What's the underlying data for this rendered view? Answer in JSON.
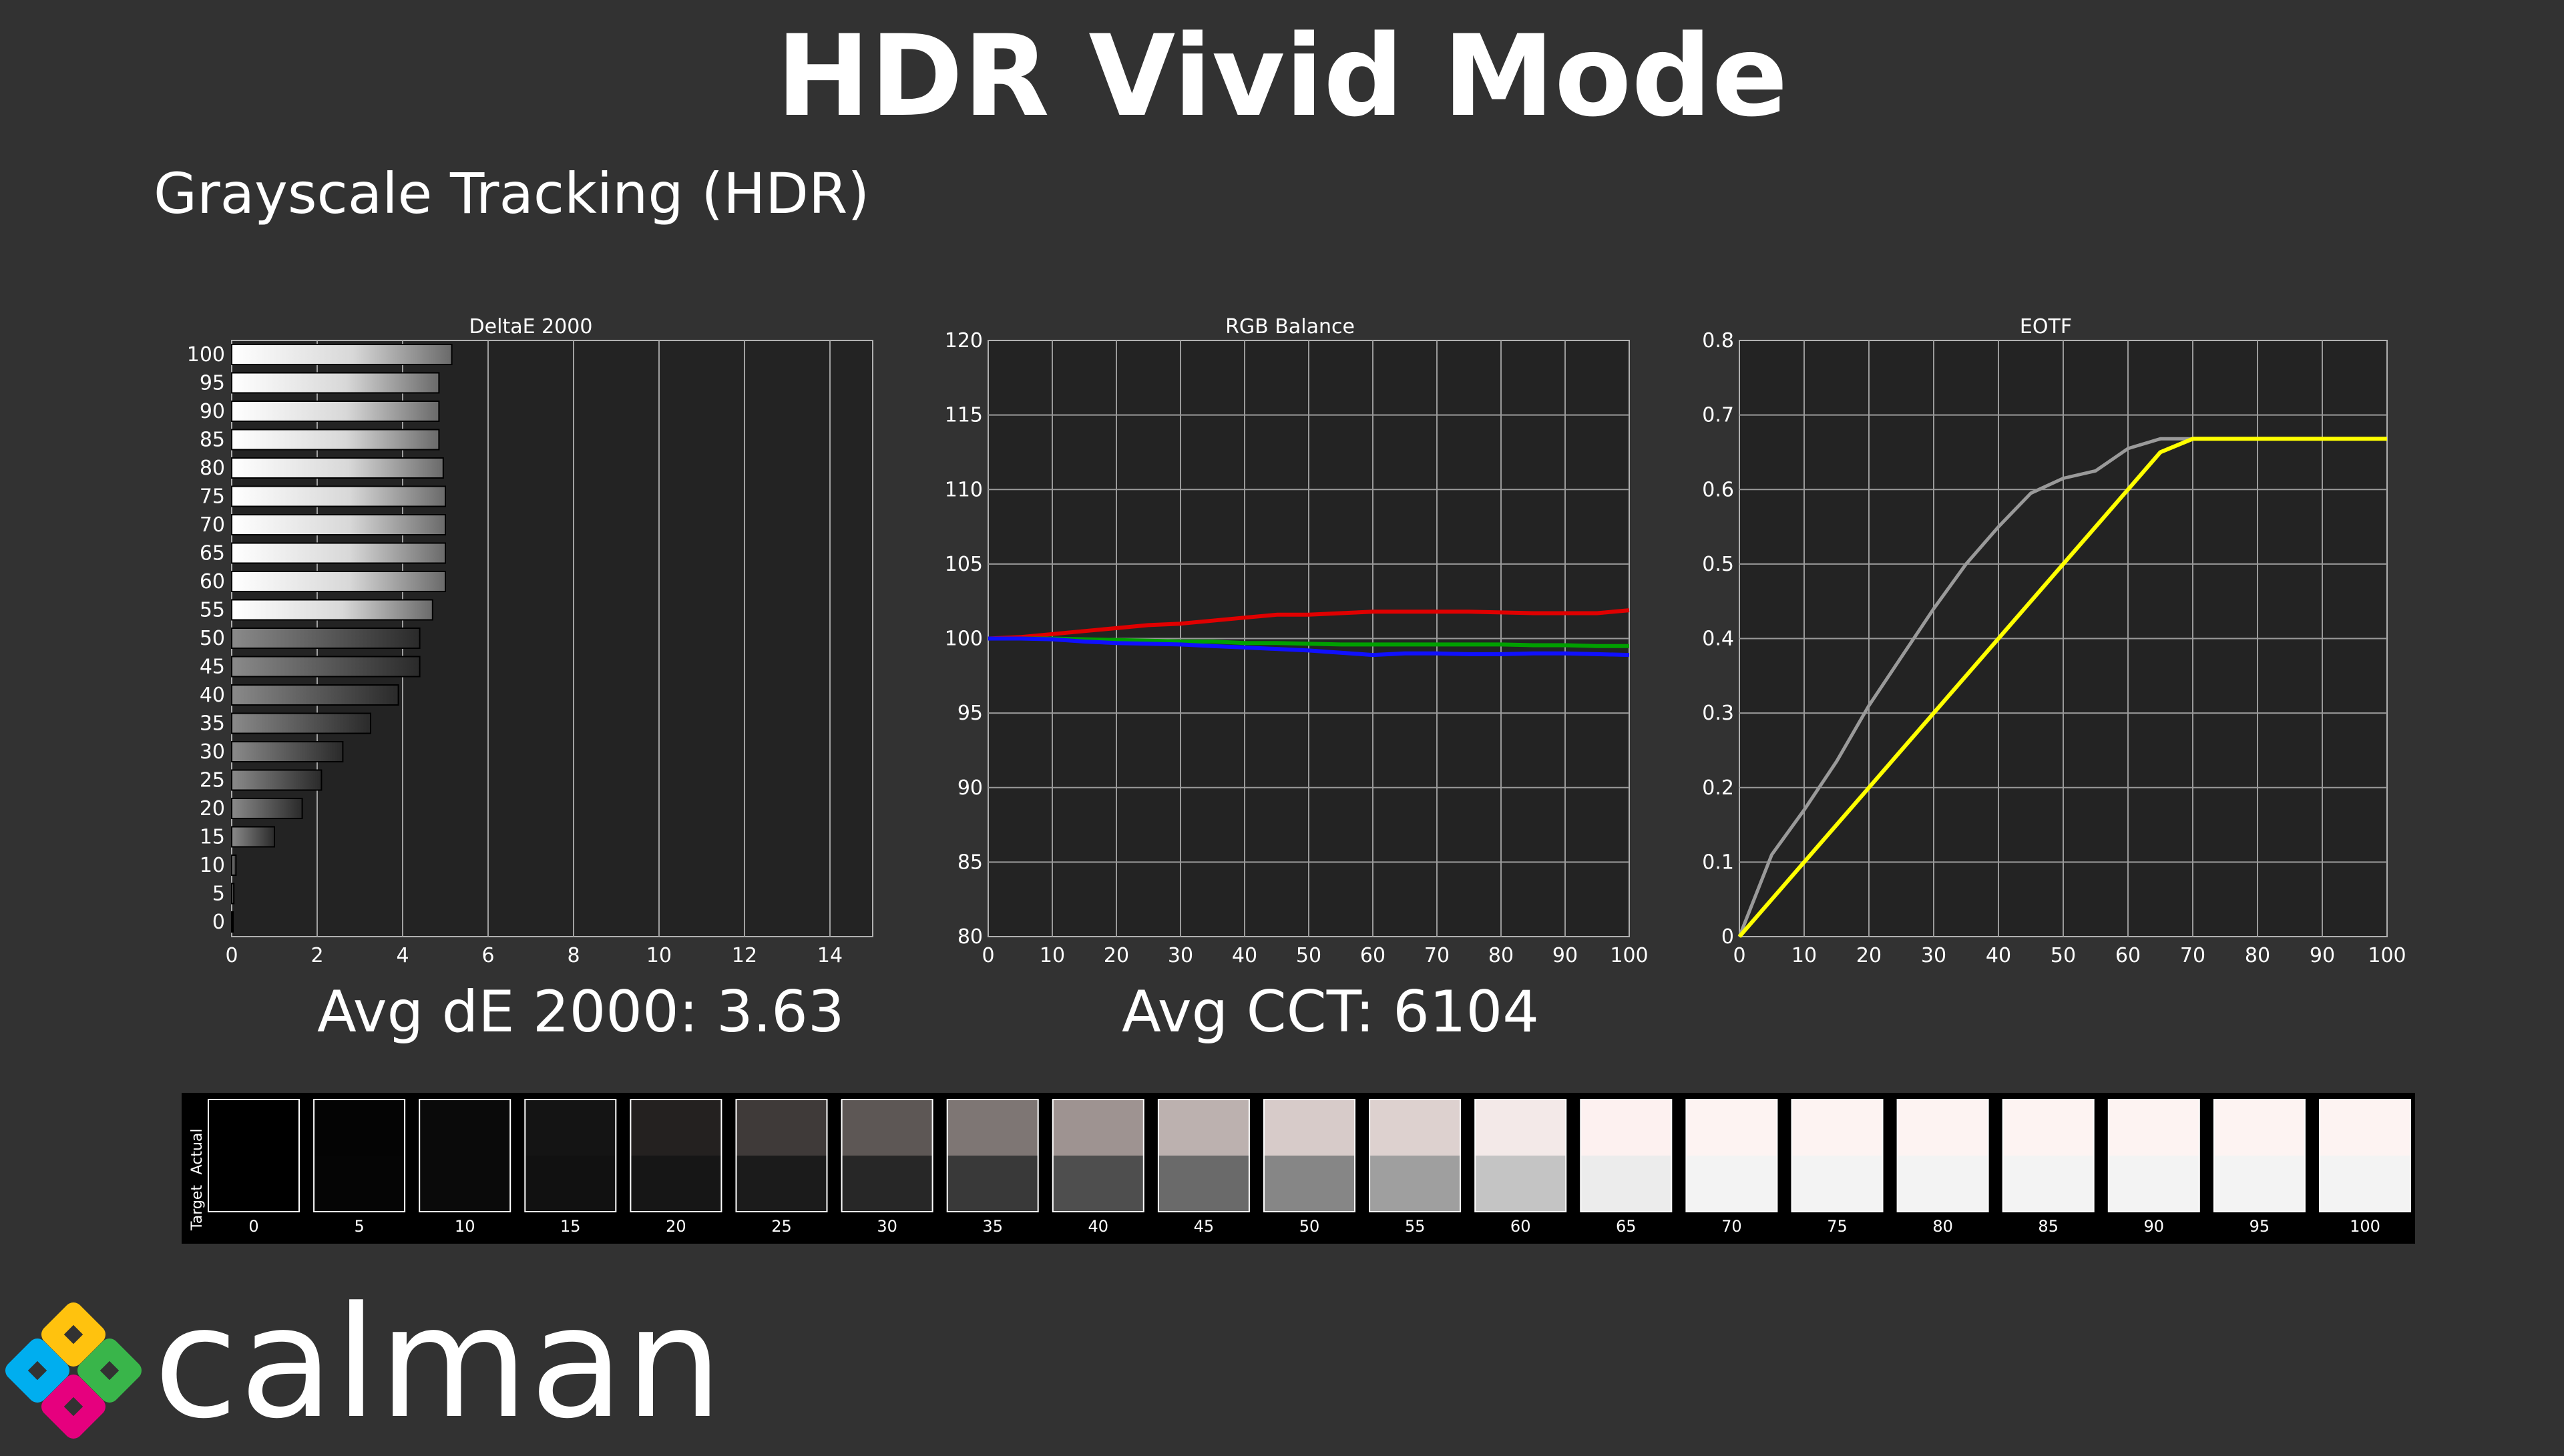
{
  "header": {
    "title": "HDR Vivid Mode",
    "subtitle": "Grayscale Tracking (HDR)"
  },
  "summary": {
    "avg_de_label": "Avg dE 2000: 3.63",
    "avg_cct_label": "Avg CCT: 6104"
  },
  "chart_data": [
    {
      "type": "bar",
      "orientation": "horizontal",
      "title": "DeltaE 2000",
      "categories": [
        "0",
        "5",
        "10",
        "15",
        "20",
        "25",
        "30",
        "35",
        "40",
        "45",
        "50",
        "55",
        "60",
        "65",
        "70",
        "75",
        "80",
        "85",
        "90",
        "95",
        "100"
      ],
      "values": [
        0.0,
        0.05,
        0.1,
        1.0,
        1.65,
        2.1,
        2.6,
        3.25,
        3.9,
        4.4,
        4.4,
        4.7,
        5.0,
        5.0,
        5.0,
        5.0,
        4.95,
        4.85,
        4.85,
        4.85,
        5.15
      ],
      "xlim": [
        0,
        15
      ],
      "xticks": [
        "0",
        "2",
        "4",
        "6",
        "8",
        "10",
        "12",
        "14"
      ],
      "grid": true
    },
    {
      "type": "line",
      "title": "RGB Balance",
      "x": [
        0,
        5,
        10,
        15,
        20,
        25,
        30,
        35,
        40,
        45,
        50,
        55,
        60,
        65,
        70,
        75,
        80,
        85,
        90,
        95,
        100
      ],
      "series": [
        {
          "color": "#e00000",
          "values": [
            100,
            100.1,
            100.3,
            100.5,
            100.7,
            100.9,
            101.0,
            101.2,
            101.4,
            101.6,
            101.6,
            101.7,
            101.8,
            101.8,
            101.8,
            101.8,
            101.75,
            101.7,
            101.7,
            101.7,
            101.9
          ]
        },
        {
          "color": "#00a000",
          "values": [
            100,
            100,
            100,
            99.95,
            99.9,
            99.85,
            99.8,
            99.8,
            99.7,
            99.7,
            99.65,
            99.6,
            99.6,
            99.6,
            99.6,
            99.6,
            99.6,
            99.55,
            99.55,
            99.5,
            99.5
          ]
        },
        {
          "color": "#1010ff",
          "values": [
            100,
            100,
            99.95,
            99.8,
            99.7,
            99.65,
            99.6,
            99.5,
            99.4,
            99.3,
            99.2,
            99.05,
            98.9,
            99.0,
            99.0,
            98.95,
            98.95,
            99.0,
            99.0,
            98.95,
            98.9
          ]
        }
      ],
      "xlim": [
        0,
        100
      ],
      "ylim": [
        80,
        120
      ],
      "xticks": [
        "0",
        "10",
        "20",
        "30",
        "40",
        "50",
        "60",
        "70",
        "80",
        "90",
        "100"
      ],
      "yticks": [
        "80",
        "85",
        "90",
        "95",
        "100",
        "105",
        "110",
        "115",
        "120"
      ],
      "grid": true
    },
    {
      "type": "line",
      "title": "EOTF",
      "x": [
        0,
        5,
        10,
        15,
        20,
        25,
        30,
        35,
        40,
        45,
        50,
        55,
        60,
        65,
        70,
        75,
        80,
        85,
        90,
        95,
        100
      ],
      "series": [
        {
          "color": "#9a9a9a",
          "values": [
            0,
            0.11,
            0.17,
            0.235,
            0.31,
            0.375,
            0.44,
            0.5,
            0.55,
            0.595,
            0.615,
            0.625,
            0.655,
            0.668,
            0.668,
            0.668,
            0.668,
            0.668,
            0.668,
            0.668,
            0.668
          ]
        },
        {
          "color": "#ffff00",
          "values": [
            0,
            0.05,
            0.1,
            0.15,
            0.2,
            0.25,
            0.3,
            0.35,
            0.4,
            0.45,
            0.5,
            0.55,
            0.6,
            0.65,
            0.668,
            0.668,
            0.668,
            0.668,
            0.668,
            0.668,
            0.668
          ]
        }
      ],
      "xlim": [
        0,
        100
      ],
      "ylim": [
        0,
        0.8
      ],
      "xticks": [
        "0",
        "10",
        "20",
        "30",
        "40",
        "50",
        "60",
        "70",
        "80",
        "90",
        "100"
      ],
      "yticks": [
        "0",
        "0.1",
        "0.2",
        "0.3",
        "0.4",
        "0.5",
        "0.6",
        "0.7",
        "0.8"
      ],
      "grid": true
    }
  ],
  "swatches": {
    "actual_label": "Actual",
    "target_label": "Target",
    "labels": [
      "0",
      "5",
      "10",
      "15",
      "20",
      "25",
      "30",
      "35",
      "40",
      "45",
      "50",
      "55",
      "60",
      "65",
      "70",
      "75",
      "80",
      "85",
      "90",
      "95",
      "100"
    ],
    "actual_colors": [
      "#000000",
      "#040404",
      "#0a0a0a",
      "#141414",
      "#242120",
      "#3f3a39",
      "#5d5755",
      "#7e7674",
      "#9e9391",
      "#bcb1af",
      "#d7cbc9",
      "#ddd1cf",
      "#f3e9e8",
      "#fdf1f0",
      "#fdf3f2",
      "#fdf3f2",
      "#fdf3f2",
      "#fdf3f2",
      "#fdf3f2",
      "#fdf3f2",
      "#fdf3f2"
    ],
    "target_colors": [
      "#000000",
      "#050505",
      "#0a0a0a",
      "#111111",
      "#161616",
      "#1b1b1b",
      "#272727",
      "#393939",
      "#4e4e4e",
      "#6a6a6a",
      "#868686",
      "#9f9f9f",
      "#c4c4c4",
      "#ececec",
      "#f3f3f3",
      "#f3f3f3",
      "#f3f3f3",
      "#f3f3f3",
      "#f3f3f3",
      "#f3f3f3",
      "#f3f3f3"
    ]
  },
  "logo": {
    "text": "calman",
    "icon": "calman-diamond-logo-icon",
    "colors": [
      "#ffc20e",
      "#39b54a",
      "#e6007e",
      "#00aeef"
    ]
  }
}
